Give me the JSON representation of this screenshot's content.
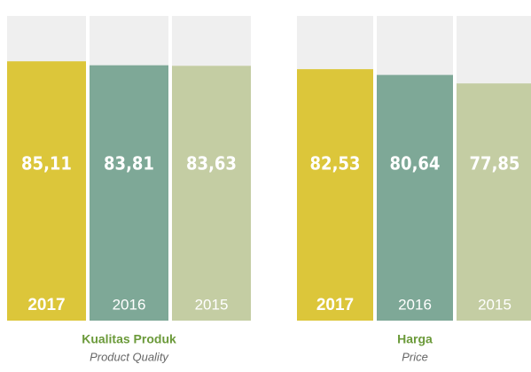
{
  "chart_data": [
    {
      "type": "bar",
      "title": "Kualitas Produk",
      "subtitle": "Product Quality",
      "categories": [
        "2017",
        "2016",
        "2015"
      ],
      "values": [
        85.11,
        83.81,
        83.63
      ],
      "value_labels": [
        "85,11",
        "83,81",
        "83,63"
      ],
      "colors": [
        "#dcc63a",
        "#7ea897",
        "#c4cda3"
      ],
      "background": "#efefef",
      "ylim": [
        0,
        100
      ]
    },
    {
      "type": "bar",
      "title": "Harga",
      "subtitle": "Price",
      "categories": [
        "2017",
        "2016",
        "2015"
      ],
      "values": [
        82.53,
        80.64,
        77.85
      ],
      "value_labels": [
        "82,53",
        "80,64",
        "77,85"
      ],
      "colors": [
        "#dcc63a",
        "#7ea897",
        "#c4cda3"
      ],
      "background": "#efefef",
      "ylim": [
        0,
        100
      ]
    }
  ]
}
